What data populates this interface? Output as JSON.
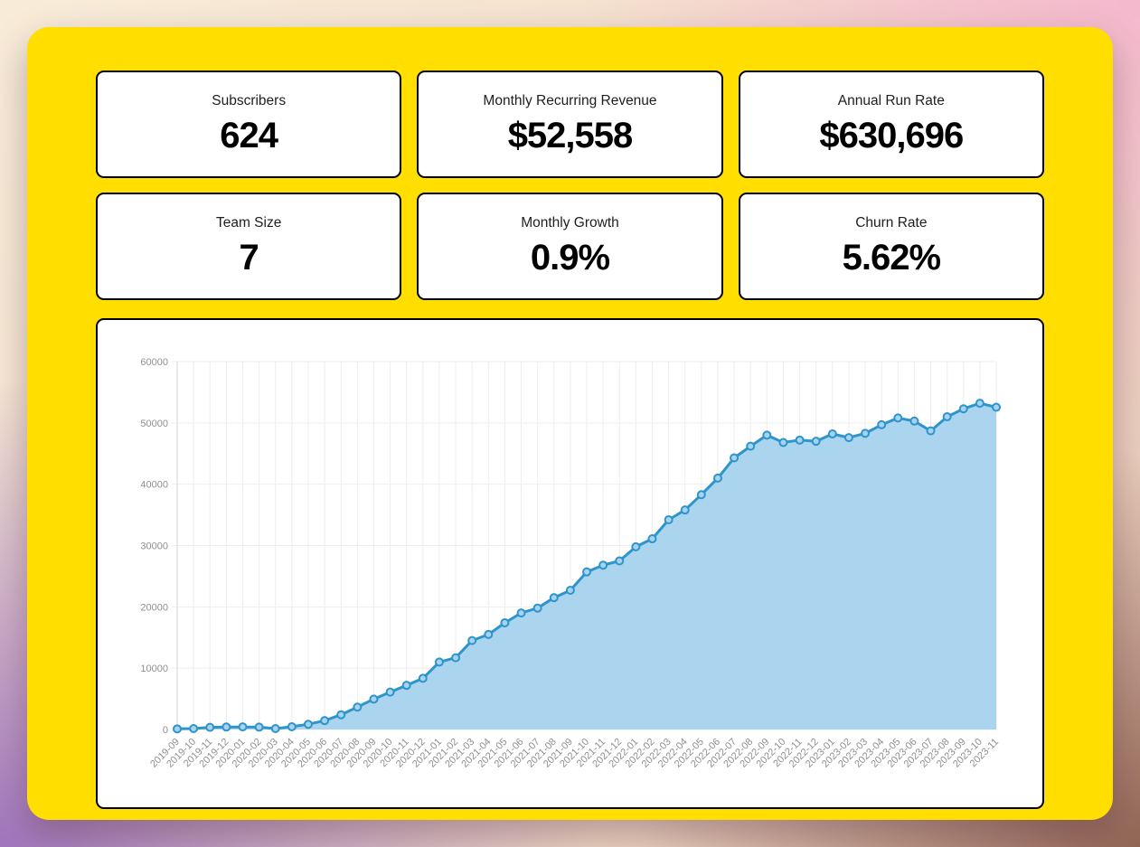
{
  "theme": {
    "panel_yellow": "#ffde00",
    "card_border": "#000000",
    "card_background": "#ffffff"
  },
  "cards": [
    {
      "label": "Subscribers",
      "value": "624"
    },
    {
      "label": "Monthly Recurring Revenue",
      "value": "$52,558"
    },
    {
      "label": "Annual Run Rate",
      "value": "$630,696"
    },
    {
      "label": "Team Size",
      "value": "7"
    },
    {
      "label": "Monthly Growth",
      "value": "0.9%"
    },
    {
      "label": "Churn Rate",
      "value": "5.62%"
    }
  ],
  "chart_data": {
    "type": "area",
    "title": "",
    "xlabel": "",
    "ylabel": "",
    "legend": false,
    "grid": true,
    "ylim": [
      0,
      60000
    ],
    "yticks": [
      0,
      10000,
      20000,
      30000,
      40000,
      50000,
      60000
    ],
    "x": [
      "2019-09",
      "2019-10",
      "2019-11",
      "2019-12",
      "2020-01",
      "2020-02",
      "2020-03",
      "2020-04",
      "2020-05",
      "2020-06",
      "2020-07",
      "2020-08",
      "2020-09",
      "2020-10",
      "2020-11",
      "2020-12",
      "2021-01",
      "2021-02",
      "2021-03",
      "2021-04",
      "2021-05",
      "2021-06",
      "2021-07",
      "2021-08",
      "2021-09",
      "2021-10",
      "2021-11",
      "2021-12",
      "2022-01",
      "2022-02",
      "2022-03",
      "2022-04",
      "2022-05",
      "2022-06",
      "2022-07",
      "2022-08",
      "2022-09",
      "2022-10",
      "2022-11",
      "2022-12",
      "2023-01",
      "2023-02",
      "2023-03",
      "2023-04",
      "2023-05",
      "2023-06",
      "2023-07",
      "2023-08",
      "2023-09",
      "2023-10",
      "2023-11"
    ],
    "series": [
      {
        "name": "Monthly Recurring Revenue",
        "values": [
          100,
          150,
          350,
          400,
          420,
          380,
          150,
          450,
          850,
          1450,
          2400,
          3650,
          4950,
          6100,
          7200,
          8350,
          11000,
          11700,
          14500,
          15500,
          17400,
          19000,
          19800,
          21500,
          22700,
          25700,
          26800,
          27500,
          29800,
          31100,
          34200,
          35800,
          38300,
          41000,
          44300,
          46200,
          48000,
          46800,
          47200,
          47000,
          48200,
          47600,
          48300,
          49700,
          50800,
          50300,
          48700,
          51000,
          52300,
          53200,
          52558
        ]
      }
    ],
    "colors": {
      "line": "#2e94cc",
      "fill": "#abd5ef",
      "marker_fill": "#a8d3ef",
      "grid": "#ededed",
      "axis": "#d6d6d6",
      "tick_text": "#8f8f8f"
    }
  }
}
